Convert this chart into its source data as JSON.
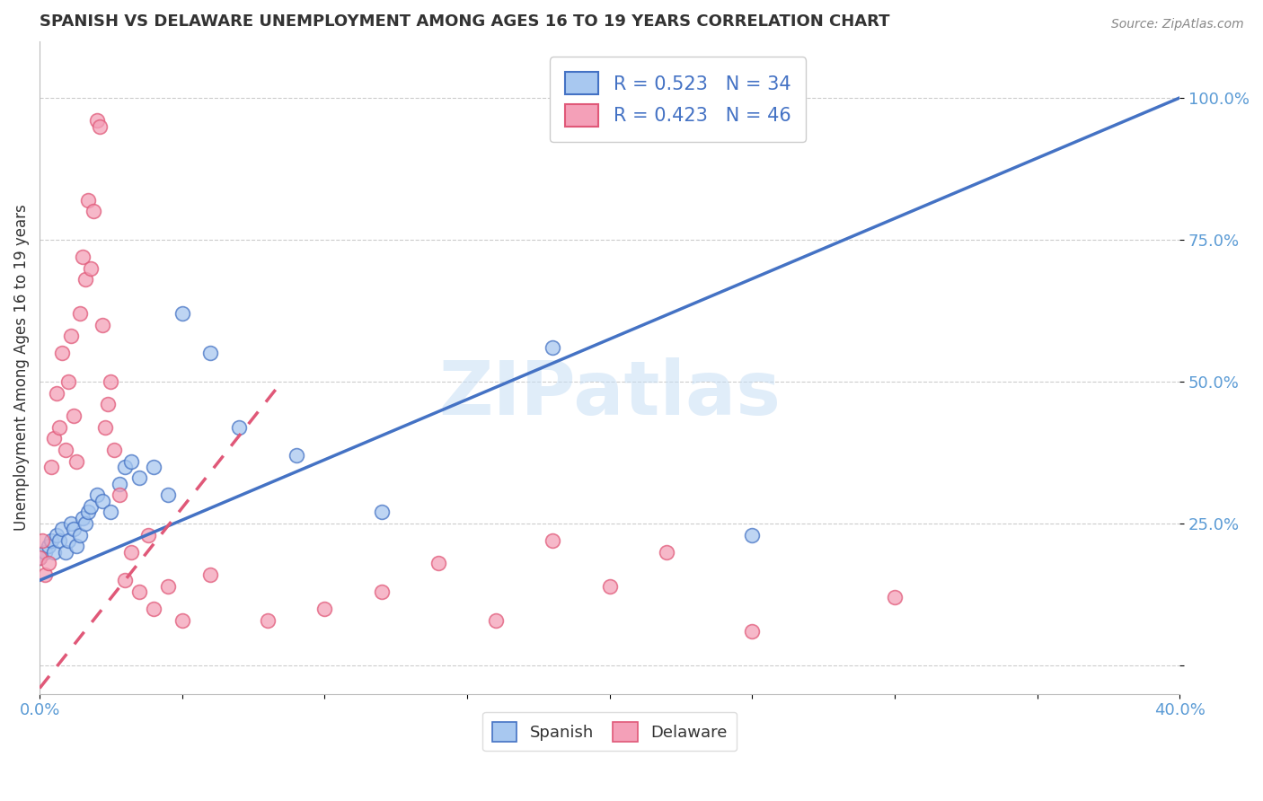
{
  "title": "SPANISH VS DELAWARE UNEMPLOYMENT AMONG AGES 16 TO 19 YEARS CORRELATION CHART",
  "source": "Source: ZipAtlas.com",
  "ylabel": "Unemployment Among Ages 16 to 19 years",
  "xlim": [
    0.0,
    0.4
  ],
  "ylim": [
    -0.05,
    1.1
  ],
  "xticks": [
    0.0,
    0.05,
    0.1,
    0.15,
    0.2,
    0.25,
    0.3,
    0.35,
    0.4
  ],
  "xticklabels": [
    "0.0%",
    "",
    "",
    "",
    "",
    "",
    "",
    "",
    "40.0%"
  ],
  "yticks_right": [
    0.0,
    0.25,
    0.5,
    0.75,
    1.0
  ],
  "yticklabels_right": [
    "",
    "25.0%",
    "50.0%",
    "75.0%",
    "100.0%"
  ],
  "watermark": "ZIPatlas",
  "legend_blue_r": "R = 0.523",
  "legend_blue_n": "N = 34",
  "legend_pink_r": "R = 0.423",
  "legend_pink_n": "N = 46",
  "blue_color": "#A8C8F0",
  "pink_color": "#F4A0B8",
  "blue_line_color": "#4472C4",
  "pink_line_color": "#E05878",
  "axis_color": "#5B9BD5",
  "grid_color": "#CCCCCC",
  "background_color": "#FFFFFF",
  "blue_line_x0": 0.0,
  "blue_line_y0": 0.15,
  "blue_line_x1": 0.4,
  "blue_line_y1": 1.0,
  "pink_line_x0": 0.0,
  "pink_line_y0": -0.04,
  "pink_line_x1": 0.085,
  "pink_line_y1": 0.5,
  "spanish_scatter_x": [
    0.0,
    0.002,
    0.003,
    0.004,
    0.005,
    0.006,
    0.007,
    0.008,
    0.009,
    0.01,
    0.011,
    0.012,
    0.013,
    0.014,
    0.015,
    0.016,
    0.017,
    0.018,
    0.02,
    0.022,
    0.025,
    0.028,
    0.03,
    0.032,
    0.035,
    0.04,
    0.045,
    0.05,
    0.06,
    0.07,
    0.09,
    0.12,
    0.18,
    0.25
  ],
  "spanish_scatter_y": [
    0.19,
    0.2,
    0.21,
    0.22,
    0.2,
    0.23,
    0.22,
    0.24,
    0.2,
    0.22,
    0.25,
    0.24,
    0.21,
    0.23,
    0.26,
    0.25,
    0.27,
    0.28,
    0.3,
    0.29,
    0.27,
    0.32,
    0.35,
    0.36,
    0.33,
    0.35,
    0.3,
    0.62,
    0.55,
    0.42,
    0.37,
    0.27,
    0.56,
    0.23
  ],
  "delaware_scatter_x": [
    0.0,
    0.001,
    0.002,
    0.003,
    0.004,
    0.005,
    0.006,
    0.007,
    0.008,
    0.009,
    0.01,
    0.011,
    0.012,
    0.013,
    0.014,
    0.015,
    0.016,
    0.017,
    0.018,
    0.019,
    0.02,
    0.021,
    0.022,
    0.023,
    0.024,
    0.025,
    0.026,
    0.028,
    0.03,
    0.032,
    0.035,
    0.038,
    0.04,
    0.045,
    0.05,
    0.06,
    0.08,
    0.1,
    0.12,
    0.14,
    0.16,
    0.18,
    0.2,
    0.22,
    0.25,
    0.3
  ],
  "delaware_scatter_y": [
    0.19,
    0.22,
    0.16,
    0.18,
    0.35,
    0.4,
    0.48,
    0.42,
    0.55,
    0.38,
    0.5,
    0.58,
    0.44,
    0.36,
    0.62,
    0.72,
    0.68,
    0.82,
    0.7,
    0.8,
    0.96,
    0.95,
    0.6,
    0.42,
    0.46,
    0.5,
    0.38,
    0.3,
    0.15,
    0.2,
    0.13,
    0.23,
    0.1,
    0.14,
    0.08,
    0.16,
    0.08,
    0.1,
    0.13,
    0.18,
    0.08,
    0.22,
    0.14,
    0.2,
    0.06,
    0.12
  ]
}
